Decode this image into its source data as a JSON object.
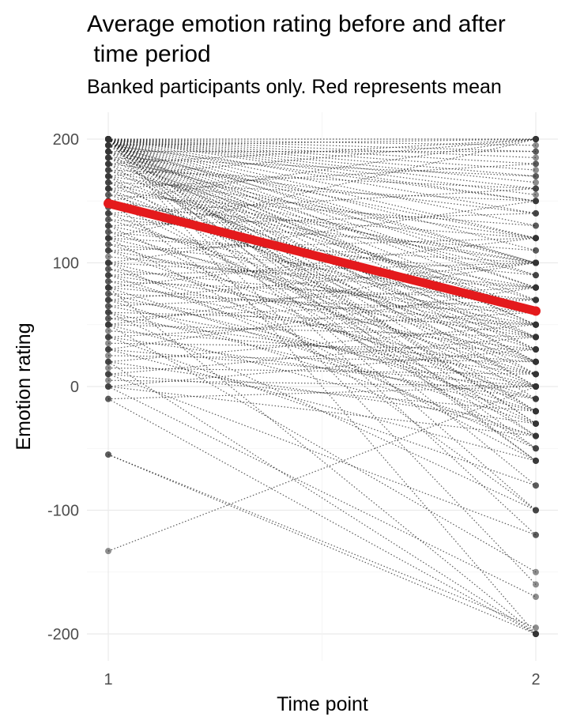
{
  "chart_data": {
    "type": "line",
    "title": "Average emotion rating before and after \n time period",
    "subtitle": "Banked participants only. Red represents mean",
    "xlabel": "Time point",
    "ylabel": "Emotion rating",
    "x": [
      1,
      2
    ],
    "xlim": [
      1,
      2
    ],
    "ylim": [
      -200,
      200
    ],
    "x_ticks": [
      "1",
      "2"
    ],
    "y_ticks": [
      "-200",
      "-100",
      "0",
      "100",
      "200"
    ],
    "grid": true,
    "mean_line": {
      "values": [
        148,
        61
      ],
      "color": "#e41a1c"
    },
    "participant_lines": [
      [
        200,
        200
      ],
      [
        200,
        195
      ],
      [
        200,
        190
      ],
      [
        200,
        185
      ],
      [
        200,
        180
      ],
      [
        200,
        175
      ],
      [
        200,
        170
      ],
      [
        200,
        165
      ],
      [
        200,
        160
      ],
      [
        200,
        155
      ],
      [
        200,
        150
      ],
      [
        200,
        140
      ],
      [
        200,
        130
      ],
      [
        200,
        120
      ],
      [
        200,
        110
      ],
      [
        200,
        100
      ],
      [
        200,
        90
      ],
      [
        200,
        80
      ],
      [
        200,
        70
      ],
      [
        200,
        60
      ],
      [
        200,
        50
      ],
      [
        200,
        40
      ],
      [
        200,
        30
      ],
      [
        200,
        20
      ],
      [
        200,
        10
      ],
      [
        200,
        0
      ],
      [
        200,
        -10
      ],
      [
        200,
        -20
      ],
      [
        200,
        -30
      ],
      [
        200,
        -40
      ],
      [
        200,
        -50
      ],
      [
        200,
        -60
      ],
      [
        200,
        -80
      ],
      [
        200,
        -100
      ],
      [
        200,
        -120
      ],
      [
        200,
        -160
      ],
      [
        200,
        -200
      ],
      [
        195,
        200
      ],
      [
        195,
        150
      ],
      [
        195,
        100
      ],
      [
        195,
        50
      ],
      [
        195,
        -30
      ],
      [
        190,
        190
      ],
      [
        190,
        120
      ],
      [
        190,
        80
      ],
      [
        190,
        20
      ],
      [
        190,
        -60
      ],
      [
        185,
        170
      ],
      [
        185,
        100
      ],
      [
        185,
        60
      ],
      [
        185,
        0
      ],
      [
        180,
        200
      ],
      [
        180,
        140
      ],
      [
        180,
        60
      ],
      [
        180,
        -20
      ],
      [
        175,
        160
      ],
      [
        175,
        90
      ],
      [
        175,
        30
      ],
      [
        170,
        200
      ],
      [
        170,
        120
      ],
      [
        170,
        40
      ],
      [
        170,
        -40
      ],
      [
        165,
        150
      ],
      [
        165,
        70
      ],
      [
        165,
        10
      ],
      [
        160,
        180
      ],
      [
        160,
        100
      ],
      [
        160,
        20
      ],
      [
        160,
        -50
      ],
      [
        155,
        130
      ],
      [
        155,
        50
      ],
      [
        150,
        200
      ],
      [
        150,
        100
      ],
      [
        150,
        40
      ],
      [
        150,
        -20
      ],
      [
        150,
        -100
      ],
      [
        145,
        120
      ],
      [
        145,
        60
      ],
      [
        140,
        160
      ],
      [
        140,
        80
      ],
      [
        140,
        0
      ],
      [
        135,
        110
      ],
      [
        135,
        30
      ],
      [
        130,
        140
      ],
      [
        130,
        60
      ],
      [
        130,
        -30
      ],
      [
        125,
        90
      ],
      [
        125,
        20
      ],
      [
        120,
        200
      ],
      [
        120,
        100
      ],
      [
        120,
        40
      ],
      [
        120,
        -60
      ],
      [
        115,
        80
      ],
      [
        115,
        10
      ],
      [
        110,
        120
      ],
      [
        110,
        50
      ],
      [
        110,
        -10
      ],
      [
        105,
        70
      ],
      [
        100,
        150
      ],
      [
        100,
        80
      ],
      [
        100,
        20
      ],
      [
        100,
        -50
      ],
      [
        95,
        60
      ],
      [
        95,
        0
      ],
      [
        90,
        100
      ],
      [
        90,
        40
      ],
      [
        90,
        -20
      ],
      [
        85,
        70
      ],
      [
        85,
        10
      ],
      [
        80,
        120
      ],
      [
        80,
        50
      ],
      [
        80,
        -30
      ],
      [
        80,
        -200
      ],
      [
        75,
        60
      ],
      [
        75,
        -10
      ],
      [
        70,
        100
      ],
      [
        70,
        30
      ],
      [
        70,
        -40
      ],
      [
        65,
        80
      ],
      [
        65,
        0
      ],
      [
        60,
        50
      ],
      [
        60,
        -20
      ],
      [
        60,
        -100
      ],
      [
        55,
        70
      ],
      [
        55,
        10
      ],
      [
        50,
        100
      ],
      [
        50,
        40
      ],
      [
        50,
        -40
      ],
      [
        50,
        -150
      ],
      [
        45,
        20
      ],
      [
        40,
        60
      ],
      [
        40,
        -10
      ],
      [
        40,
        -80
      ],
      [
        35,
        30
      ],
      [
        30,
        80
      ],
      [
        30,
        0
      ],
      [
        30,
        -60
      ],
      [
        25,
        20
      ],
      [
        20,
        50
      ],
      [
        20,
        -30
      ],
      [
        20,
        -200
      ],
      [
        15,
        10
      ],
      [
        10,
        40
      ],
      [
        10,
        -20
      ],
      [
        10,
        -120
      ],
      [
        5,
        0
      ],
      [
        0,
        30
      ],
      [
        0,
        -40
      ],
      [
        0,
        -170
      ],
      [
        -10,
        0
      ],
      [
        -10,
        -200
      ],
      [
        -55,
        -200
      ],
      [
        -55,
        -195
      ],
      [
        -133,
        0
      ]
    ]
  }
}
